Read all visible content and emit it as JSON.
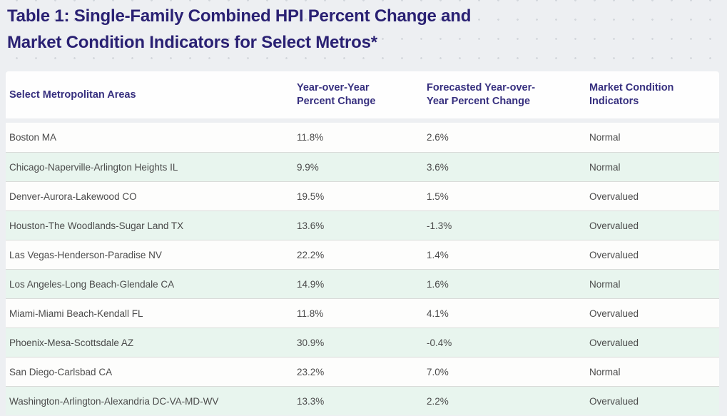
{
  "page": {
    "title_line1": "Table 1: Single-Family Combined HPI Percent Change and",
    "title_line2": "Market Condition Indicators for Select Metros*"
  },
  "table": {
    "columns": [
      "Select Metropolitan Areas",
      "Year-over-Year Percent Change",
      "Forecasted Year-over-Year Percent Change",
      "Market Condition Indicators"
    ],
    "rows": [
      {
        "metro": "Boston MA",
        "yoy": "11.8%",
        "forecast": "2.6%",
        "indicator": "Normal"
      },
      {
        "metro": "Chicago-Naperville-Arlington Heights IL",
        "yoy": "9.9%",
        "forecast": "3.6%",
        "indicator": "Normal"
      },
      {
        "metro": "Denver-Aurora-Lakewood CO",
        "yoy": "19.5%",
        "forecast": "1.5%",
        "indicator": "Overvalued"
      },
      {
        "metro": "Houston-The Woodlands-Sugar Land TX",
        "yoy": "13.6%",
        "forecast": "-1.3%",
        "indicator": "Overvalued"
      },
      {
        "metro": "Las Vegas-Henderson-Paradise NV",
        "yoy": "22.2%",
        "forecast": "1.4%",
        "indicator": "Overvalued"
      },
      {
        "metro": "Los Angeles-Long Beach-Glendale CA",
        "yoy": "14.9%",
        "forecast": "1.6%",
        "indicator": "Normal"
      },
      {
        "metro": "Miami-Miami Beach-Kendall FL",
        "yoy": "11.8%",
        "forecast": "4.1%",
        "indicator": "Overvalued"
      },
      {
        "metro": "Phoenix-Mesa-Scottsdale AZ",
        "yoy": "30.9%",
        "forecast": "-0.4%",
        "indicator": "Overvalued"
      },
      {
        "metro": "San Diego-Carlsbad CA",
        "yoy": "23.2%",
        "forecast": "7.0%",
        "indicator": "Normal"
      },
      {
        "metro": "Washington-Arlington-Alexandria DC-VA-MD-WV",
        "yoy": "13.3%",
        "forecast": "2.2%",
        "indicator": "Overvalued"
      }
    ]
  },
  "chart_data": {
    "type": "table",
    "title": "Table 1: Single-Family Combined HPI Percent Change and Market Condition Indicators for Select Metros*",
    "columns": [
      "Select Metropolitan Areas",
      "Year-over-Year Percent Change",
      "Forecasted Year-over-Year Percent Change",
      "Market Condition Indicators"
    ],
    "rows": [
      [
        "Boston MA",
        11.8,
        2.6,
        "Normal"
      ],
      [
        "Chicago-Naperville-Arlington Heights IL",
        9.9,
        3.6,
        "Normal"
      ],
      [
        "Denver-Aurora-Lakewood CO",
        19.5,
        1.5,
        "Overvalued"
      ],
      [
        "Houston-The Woodlands-Sugar Land TX",
        13.6,
        -1.3,
        "Overvalued"
      ],
      [
        "Las Vegas-Henderson-Paradise NV",
        22.2,
        1.4,
        "Overvalued"
      ],
      [
        "Los Angeles-Long Beach-Glendale CA",
        14.9,
        1.6,
        "Normal"
      ],
      [
        "Miami-Miami Beach-Kendall FL",
        11.8,
        4.1,
        "Overvalued"
      ],
      [
        "Phoenix-Mesa-Scottsdale AZ",
        30.9,
        -0.4,
        "Overvalued"
      ],
      [
        "San Diego-Carlsbad CA",
        23.2,
        7.0,
        "Normal"
      ],
      [
        "Washington-Arlington-Alexandria DC-VA-MD-WV",
        13.3,
        2.2,
        "Overvalued"
      ]
    ],
    "units": {
      "Year-over-Year Percent Change": "%",
      "Forecasted Year-over-Year Percent Change": "%"
    },
    "row_stripes": [
      "white",
      "mint-green"
    ]
  },
  "colors": {
    "page_background": "#edeff2",
    "dot_pattern": "#d3d7dc",
    "title_text": "#2a2173",
    "header_text": "#37307f",
    "header_background": "#fefefe",
    "row_white": "#fdfdfc",
    "row_green": "#e8f5ee",
    "row_border": "#d9dbd9",
    "body_text": "#4b4b4b"
  }
}
